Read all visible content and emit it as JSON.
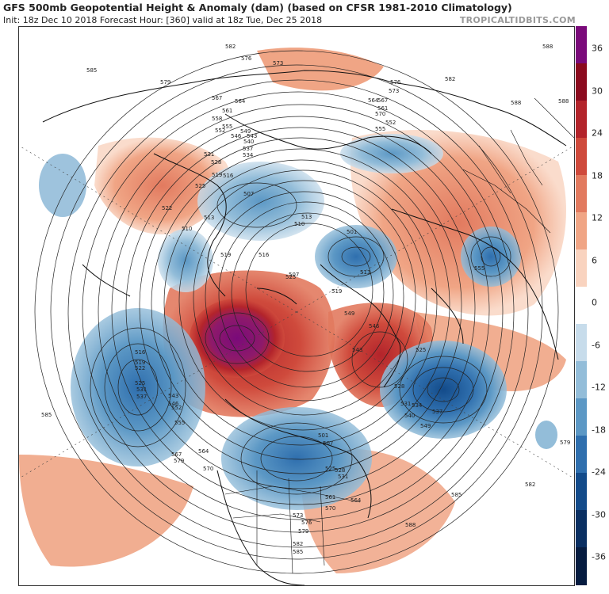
{
  "header": {
    "title": "GFS 500mb Geopotential Height & Anomaly (dam) (based on CFSR 1981-2010 Climatology)",
    "subtitle": "Init: 18z Dec 10 2018   Forecast Hour: [360]   valid at 18z Tue, Dec 25 2018",
    "brand": "TROPICALTIDBITS.COM"
  },
  "colorbar": {
    "labels": [
      "36",
      "30",
      "24",
      "18",
      "12",
      "6",
      "0",
      "-6",
      "-12",
      "-18",
      "-24",
      "-30",
      "-36"
    ],
    "colors": [
      "#7a0a7a",
      "#8b0a1e",
      "#b3242b",
      "#cf4a3c",
      "#e27a5f",
      "#f0a585",
      "#f9d3bf",
      "#ffffff",
      "#c7dceb",
      "#93bdd9",
      "#5c98c5",
      "#2f6fae",
      "#134b8a",
      "#0a2f62",
      "#061c40"
    ]
  },
  "contour_labels": [
    {
      "t": "585",
      "key": "a"
    },
    {
      "t": "582",
      "key": "b"
    },
    {
      "t": "576",
      "key": "c"
    },
    {
      "t": "573",
      "key": "d"
    },
    {
      "t": "579",
      "key": "e"
    },
    {
      "t": "567",
      "key": "f"
    },
    {
      "t": "564",
      "key": "g"
    },
    {
      "t": "561",
      "key": "h"
    },
    {
      "t": "558",
      "key": "i"
    },
    {
      "t": "555",
      "key": "j"
    },
    {
      "t": "552",
      "key": "k"
    },
    {
      "t": "549",
      "key": "l"
    },
    {
      "t": "546",
      "key": "m"
    },
    {
      "t": "543",
      "key": "n"
    },
    {
      "t": "540",
      "key": "o"
    },
    {
      "t": "537",
      "key": "p"
    },
    {
      "t": "534",
      "key": "q"
    },
    {
      "t": "531",
      "key": "r"
    },
    {
      "t": "528",
      "key": "s"
    },
    {
      "t": "525",
      "key": "t"
    },
    {
      "t": "522",
      "key": "u"
    },
    {
      "t": "519",
      "key": "v"
    },
    {
      "t": "516",
      "key": "w"
    },
    {
      "t": "513",
      "key": "x"
    },
    {
      "t": "510",
      "key": "y"
    },
    {
      "t": "507",
      "key": "z"
    },
    {
      "t": "504",
      "key": "aa"
    },
    {
      "t": "501",
      "key": "bb"
    },
    {
      "t": "588",
      "key": "cc"
    },
    {
      "t": "570",
      "key": "dd"
    }
  ]
}
